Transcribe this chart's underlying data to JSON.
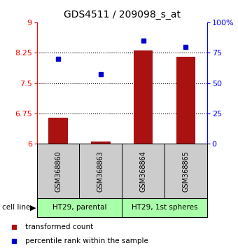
{
  "title": "GDS4511 / 209098_s_at",
  "samples": [
    "GSM368860",
    "GSM368863",
    "GSM368864",
    "GSM368865"
  ],
  "red_values": [
    6.65,
    6.05,
    8.3,
    8.15
  ],
  "blue_values": [
    70,
    57,
    85,
    80
  ],
  "ylim_left": [
    6,
    9
  ],
  "ylim_right": [
    0,
    100
  ],
  "yticks_left": [
    6,
    6.75,
    7.5,
    8.25,
    9
  ],
  "ytick_labels_left": [
    "6",
    "6.75",
    "7.5",
    "8.25",
    "9"
  ],
  "yticks_right": [
    0,
    25,
    50,
    75,
    100
  ],
  "ytick_labels_right": [
    "0",
    "25",
    "50",
    "75",
    "100%"
  ],
  "bar_color": "#aa1111",
  "dot_color": "#0000cc",
  "bar_width": 0.45,
  "groups": [
    {
      "label": "HT29, parental",
      "indices": [
        0,
        1
      ],
      "color": "#aaffaa"
    },
    {
      "label": "HT29, 1st spheres",
      "indices": [
        2,
        3
      ],
      "color": "#aaffaa"
    }
  ],
  "cell_line_label": "cell line",
  "legend_red": "transformed count",
  "legend_blue": "percentile rank within the sample",
  "bg_color": "#ffffff",
  "plot_bg": "#ffffff",
  "sample_box_color": "#cccccc",
  "title_fontsize": 10,
  "tick_fontsize": 8,
  "label_fontsize": 8
}
